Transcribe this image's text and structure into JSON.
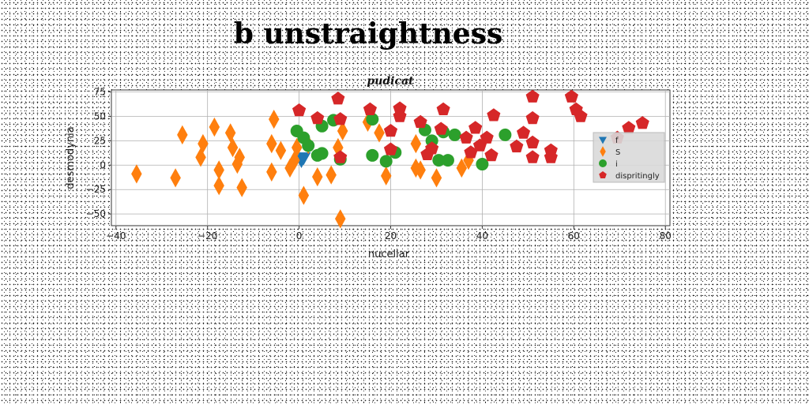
{
  "title": "b unstraightness",
  "chart_data": {
    "type": "scatter",
    "title": "pudicat",
    "xlabel": "nucellar",
    "ylabel": "desmodynia",
    "xlim": [
      -41,
      81
    ],
    "ylim": [
      -62,
      77
    ],
    "xticks": [
      -40,
      -20,
      0,
      20,
      40,
      60,
      80
    ],
    "yticks": [
      -50,
      -25,
      0,
      25,
      50,
      75
    ],
    "grid": true,
    "legend_position": "right",
    "series": [
      {
        "name": "f",
        "marker": "triangle-down",
        "color": "#1f77b4",
        "points": [
          [
            0.5,
            5
          ],
          [
            1.0,
            8
          ]
        ]
      },
      {
        "name": "S",
        "marker": "diamond",
        "color": "#ff7f0e",
        "points": [
          [
            -35.5,
            -9
          ],
          [
            -27,
            -13
          ],
          [
            -25.5,
            31
          ],
          [
            -21.5,
            8
          ],
          [
            -21,
            22
          ],
          [
            -18.5,
            39
          ],
          [
            -17.5,
            -5
          ],
          [
            -17.5,
            -21
          ],
          [
            -15,
            33
          ],
          [
            -14.5,
            18
          ],
          [
            -13.5,
            1
          ],
          [
            -13,
            8
          ],
          [
            -12.5,
            -23
          ],
          [
            -6,
            22
          ],
          [
            -6,
            -7
          ],
          [
            -5.5,
            47
          ],
          [
            -4,
            15
          ],
          [
            -2,
            -3
          ],
          [
            -1,
            5
          ],
          [
            -0.5,
            18
          ],
          [
            1,
            -31
          ],
          [
            2,
            21
          ],
          [
            4,
            -12
          ],
          [
            7,
            -10
          ],
          [
            8.5,
            18
          ],
          [
            9,
            -55
          ],
          [
            9.5,
            35
          ],
          [
            15,
            44
          ],
          [
            17.5,
            33
          ],
          [
            19,
            -11
          ],
          [
            25.5,
            22
          ],
          [
            25.5,
            -3
          ],
          [
            26.5,
            -5
          ],
          [
            30,
            -13
          ],
          [
            35.5,
            -3
          ],
          [
            37,
            5
          ]
        ]
      },
      {
        "name": "i",
        "marker": "circle",
        "color": "#2ca02c",
        "points": [
          [
            -0.5,
            35
          ],
          [
            1,
            28
          ],
          [
            2,
            20
          ],
          [
            4,
            10
          ],
          [
            5,
            40
          ],
          [
            5,
            12
          ],
          [
            7.5,
            46
          ],
          [
            9,
            6
          ],
          [
            16,
            47
          ],
          [
            16,
            10
          ],
          [
            19,
            4
          ],
          [
            21,
            13
          ],
          [
            27.5,
            36
          ],
          [
            29,
            25
          ],
          [
            30.5,
            5
          ],
          [
            31.5,
            34
          ],
          [
            32.5,
            5
          ],
          [
            34,
            31
          ],
          [
            40,
            1
          ],
          [
            45,
            31
          ]
        ]
      },
      {
        "name": "dispritingly",
        "marker": "pentagon",
        "color": "#d62728",
        "points": [
          [
            0,
            56
          ],
          [
            4,
            48
          ],
          [
            8.5,
            68
          ],
          [
            9,
            47
          ],
          [
            9,
            8
          ],
          [
            15.5,
            57
          ],
          [
            20,
            35
          ],
          [
            20,
            16
          ],
          [
            22,
            58
          ],
          [
            22,
            50
          ],
          [
            26.5,
            44
          ],
          [
            28,
            11
          ],
          [
            29,
            17
          ],
          [
            31,
            37
          ],
          [
            31.5,
            57
          ],
          [
            36.5,
            28
          ],
          [
            37.5,
            13
          ],
          [
            38.5,
            38
          ],
          [
            39.5,
            20
          ],
          [
            41,
            28
          ],
          [
            42,
            10
          ],
          [
            42.5,
            51
          ],
          [
            47.5,
            19
          ],
          [
            49,
            33
          ],
          [
            51,
            70
          ],
          [
            51,
            48
          ],
          [
            51,
            23
          ],
          [
            51,
            8
          ],
          [
            55,
            15
          ],
          [
            55,
            8
          ],
          [
            59.5,
            70
          ],
          [
            60.5,
            57
          ],
          [
            61.5,
            50
          ],
          [
            69.5,
            28
          ],
          [
            72,
            38
          ],
          [
            75,
            43
          ]
        ]
      }
    ]
  }
}
